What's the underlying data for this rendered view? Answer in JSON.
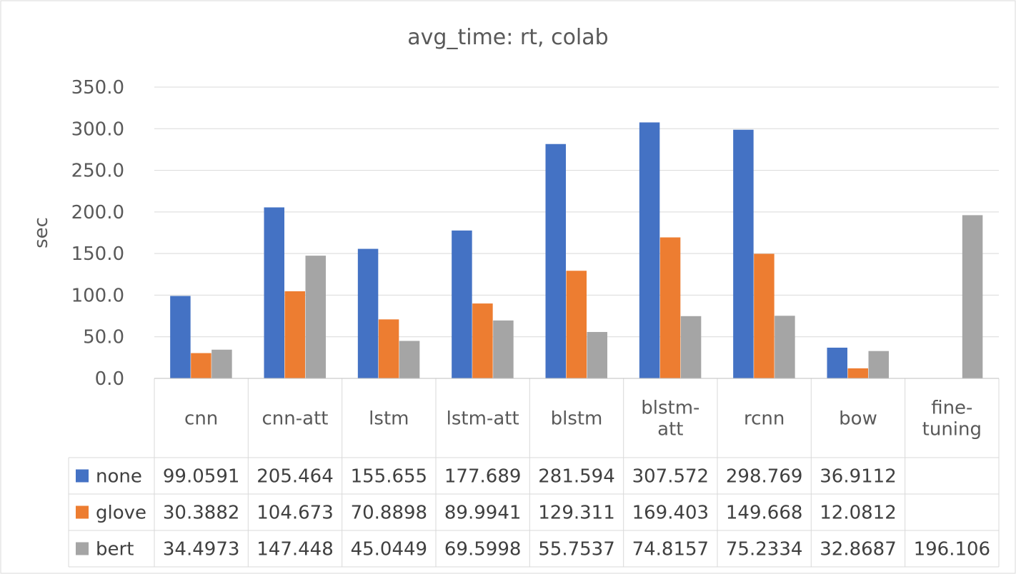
{
  "chart_data": {
    "type": "bar",
    "title": "avg_time: rt, colab",
    "xlabel": "",
    "ylabel": "sec",
    "ylim": [
      0,
      350
    ],
    "yticks": [
      "0.0",
      "50.0",
      "100.0",
      "150.0",
      "200.0",
      "250.0",
      "300.0",
      "350.0"
    ],
    "grid": true,
    "legend": "data-table",
    "categories": [
      "cnn",
      "cnn-att",
      "lstm",
      "lstm-att",
      "blstm",
      "blstm-att",
      "rcnn",
      "bow",
      "fine-tuning"
    ],
    "category_lines": [
      [
        "cnn"
      ],
      [
        "cnn-att"
      ],
      [
        "lstm"
      ],
      [
        "lstm-att"
      ],
      [
        "blstm"
      ],
      [
        "blstm-",
        "att"
      ],
      [
        "rcnn"
      ],
      [
        "bow"
      ],
      [
        "fine-",
        "tuning"
      ]
    ],
    "series": [
      {
        "name": "none",
        "color": "#4472C4",
        "values": [
          99.0591,
          205.464,
          155.655,
          177.689,
          281.594,
          307.572,
          298.769,
          36.9112,
          null
        ],
        "labels": [
          "99.0591",
          "205.464",
          "155.655",
          "177.689",
          "281.594",
          "307.572",
          "298.769",
          "36.9112",
          ""
        ]
      },
      {
        "name": "glove",
        "color": "#ED7D31",
        "values": [
          30.3882,
          104.673,
          70.8898,
          89.9941,
          129.311,
          169.403,
          149.668,
          12.0812,
          null
        ],
        "labels": [
          "30.3882",
          "104.673",
          "70.8898",
          "89.9941",
          "129.311",
          "169.403",
          "149.668",
          "12.0812",
          ""
        ]
      },
      {
        "name": "bert",
        "color": "#A5A5A5",
        "values": [
          34.4973,
          147.448,
          45.0449,
          69.5998,
          55.7537,
          74.8157,
          75.2334,
          32.8687,
          196.106
        ],
        "labels": [
          "34.4973",
          "147.448",
          "45.0449",
          "69.5998",
          "55.7537",
          "74.8157",
          "75.2334",
          "32.8687",
          "196.106"
        ]
      }
    ]
  }
}
